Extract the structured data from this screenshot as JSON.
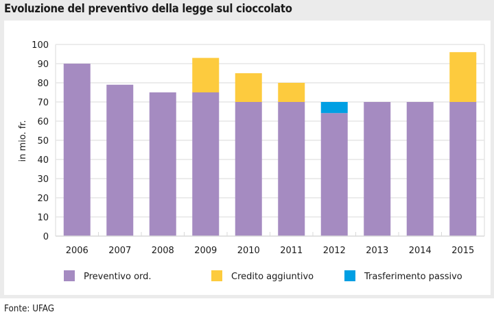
{
  "title": "Evoluzione del preventivo della legge sul cioccolato",
  "source": "Fonte: UFAG",
  "colors": {
    "preventivo": "#a58bc1",
    "credito": "#fdcb3e",
    "trasferimento": "#009fe3",
    "grid": "#e6e6e6",
    "frame": "#ebebeb"
  },
  "chart_data": {
    "type": "bar",
    "stacked": true,
    "title": "Evoluzione del preventivo della legge sul cioccolato",
    "xlabel": "",
    "ylabel": "in mio. fr.",
    "ylim": [
      0,
      100
    ],
    "yticks": [
      0,
      10,
      20,
      30,
      40,
      50,
      60,
      70,
      80,
      90,
      100
    ],
    "grid": true,
    "legend_position": "bottom",
    "categories": [
      "2006",
      "2007",
      "2008",
      "2009",
      "2010",
      "2011",
      "2012",
      "2013",
      "2014",
      "2015"
    ],
    "series": [
      {
        "name": "Preventivo ord.",
        "key": "preventivo",
        "values": [
          90,
          79,
          75,
          75,
          70,
          70,
          64.2,
          70,
          70,
          70
        ]
      },
      {
        "name": "Credito aggiuntivo",
        "key": "credito",
        "values": [
          0,
          0,
          0,
          18,
          15,
          10,
          0,
          0,
          0,
          26
        ]
      },
      {
        "name": "Trasferimento passivo",
        "key": "trasferimento",
        "values": [
          0,
          0,
          0,
          0,
          0,
          0,
          5.8,
          0,
          0,
          0
        ]
      }
    ]
  }
}
